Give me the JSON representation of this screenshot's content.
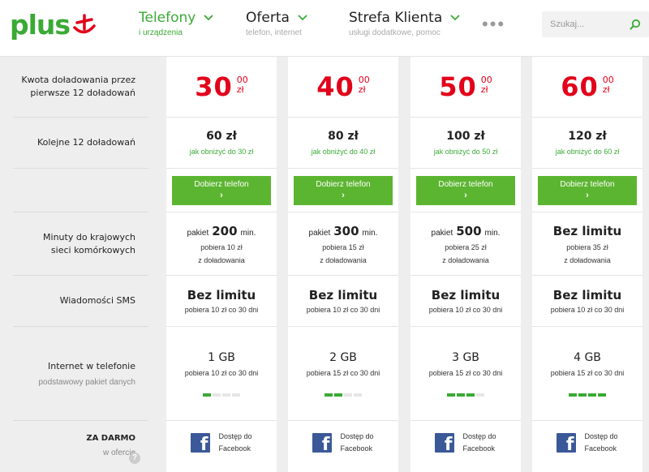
{
  "brand": {
    "name": "plus",
    "color": "#3aaa35",
    "accent": "#e2001a"
  },
  "nav": [
    {
      "title": "Telefony",
      "subtitle": "i urządzenia",
      "active": true
    },
    {
      "title": "Oferta",
      "subtitle": "telefon, internet",
      "active": false
    },
    {
      "title": "Strefa Klienta",
      "subtitle": "usługi dodatkowe, pomoc",
      "active": false
    }
  ],
  "more_label": "•••",
  "search": {
    "placeholder": "Szukaj..."
  },
  "row_labels": {
    "first_topup": "Kwota doładowania przez pierwsze 12 doładowań",
    "next_topup": "Kolejne 12 doładowań",
    "minutes": "Minuty do krajowych sieci komórkowych",
    "sms": "Wiadomości SMS",
    "internet": "Internet w telefonie",
    "internet_sub": "podstawowy pakiet danych",
    "free": "ZA DARMO",
    "free_sub": "w ofercie",
    "info": "?"
  },
  "plans": [
    {
      "price_main": "30",
      "price_cents": "00",
      "price_unit": "zł",
      "next_price": "60 zł",
      "lower_link": "jak obniżyć do 30 zł",
      "button_label": "Dobierz telefon",
      "button_arrow": "›",
      "minutes_prefix": "pakiet",
      "minutes_value": "200",
      "minutes_suffix": "min.",
      "minutes_fee": "pobiera 10 zł",
      "minutes_from": "z doładowania",
      "sms_title": "Bez limitu",
      "sms_fee": "pobiera 10 zł co 30 dni",
      "internet_gb": "1 GB",
      "internet_fee": "pobiera 10 zł co 30 dni",
      "internet_level": 1,
      "free_line1": "Dostęp do",
      "free_line2": "Facebook"
    },
    {
      "price_main": "40",
      "price_cents": "00",
      "price_unit": "zł",
      "next_price": "80 zł",
      "lower_link": "jak obniżyć do 40 zł",
      "button_label": "Dobierz telefon",
      "button_arrow": "›",
      "minutes_prefix": "pakiet",
      "minutes_value": "300",
      "minutes_suffix": "min.",
      "minutes_fee": "pobiera 15 zł",
      "minutes_from": "z doładowania",
      "sms_title": "Bez limitu",
      "sms_fee": "pobiera 10 zł co 30 dni",
      "internet_gb": "2 GB",
      "internet_fee": "pobiera 15 zł co 30 dni",
      "internet_level": 2,
      "free_line1": "Dostęp do",
      "free_line2": "Facebook"
    },
    {
      "price_main": "50",
      "price_cents": "00",
      "price_unit": "zł",
      "next_price": "100 zł",
      "lower_link": "jak obniżyć do 50 zł",
      "button_label": "Dobierz telefon",
      "button_arrow": "›",
      "minutes_prefix": "pakiet",
      "minutes_value": "500",
      "minutes_suffix": "min.",
      "minutes_fee": "pobiera 25 zł",
      "minutes_from": "z doładowania",
      "sms_title": "Bez limitu",
      "sms_fee": "pobiera 10 zł co 30 dni",
      "internet_gb": "3 GB",
      "internet_fee": "pobiera 15 zł co 30 dni",
      "internet_level": 3,
      "free_line1": "Dostęp do",
      "free_line2": "Facebook"
    },
    {
      "price_main": "60",
      "price_cents": "00",
      "price_unit": "zł",
      "next_price": "120 zł",
      "lower_link": "jak obniżyć do 60 zł",
      "button_label": "Dobierz telefon",
      "button_arrow": "›",
      "minutes_unlimited": "Bez limitu",
      "minutes_fee": "pobiera 35 zł",
      "minutes_from": "z doładowania",
      "sms_title": "Bez limitu",
      "sms_fee": "pobiera 10 zł co 30 dni",
      "internet_gb": "4 GB",
      "internet_fee": "pobiera 15 zł co 30 dni",
      "internet_level": 4,
      "free_line1": "Dostęp do",
      "free_line2": "Facebook"
    }
  ],
  "facebook_icon": {
    "name": "facebook-icon",
    "glyph": "f",
    "color": "#3b5998"
  }
}
